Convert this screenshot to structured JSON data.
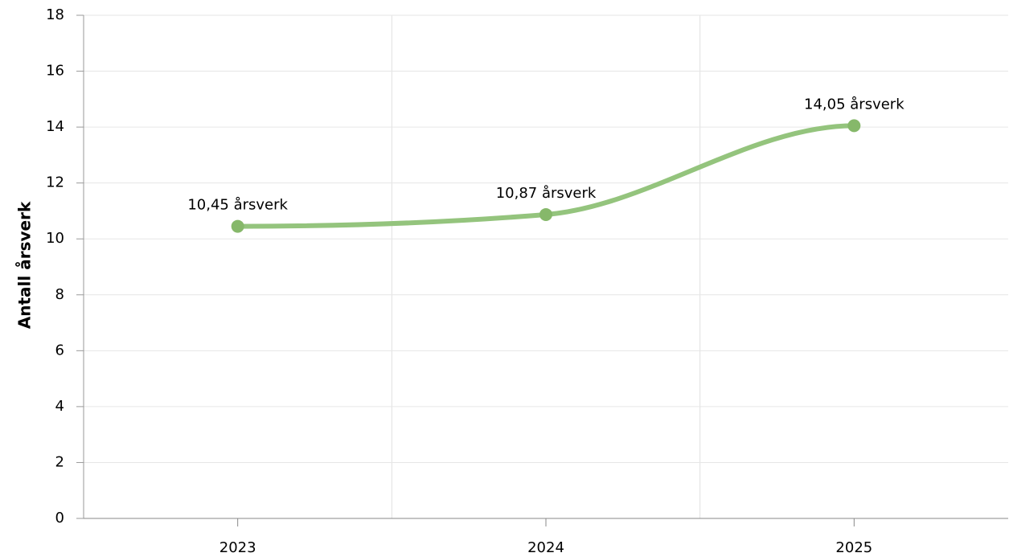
{
  "chart_data": {
    "type": "line",
    "y_axis_label": "Antall årsverk",
    "categories": [
      "2023",
      "2024",
      "2025"
    ],
    "values": [
      10.45,
      10.87,
      14.05
    ],
    "value_labels": [
      "10,45 årsverk",
      "10,87 årsverk",
      "14,05 årsverk"
    ],
    "color": "#94c47d",
    "marker_color": "#86b86a",
    "ylim": [
      0,
      18
    ],
    "yticks": [
      0,
      2,
      4,
      6,
      8,
      10,
      12,
      14,
      16,
      18
    ],
    "grid": true,
    "smooth": true
  }
}
